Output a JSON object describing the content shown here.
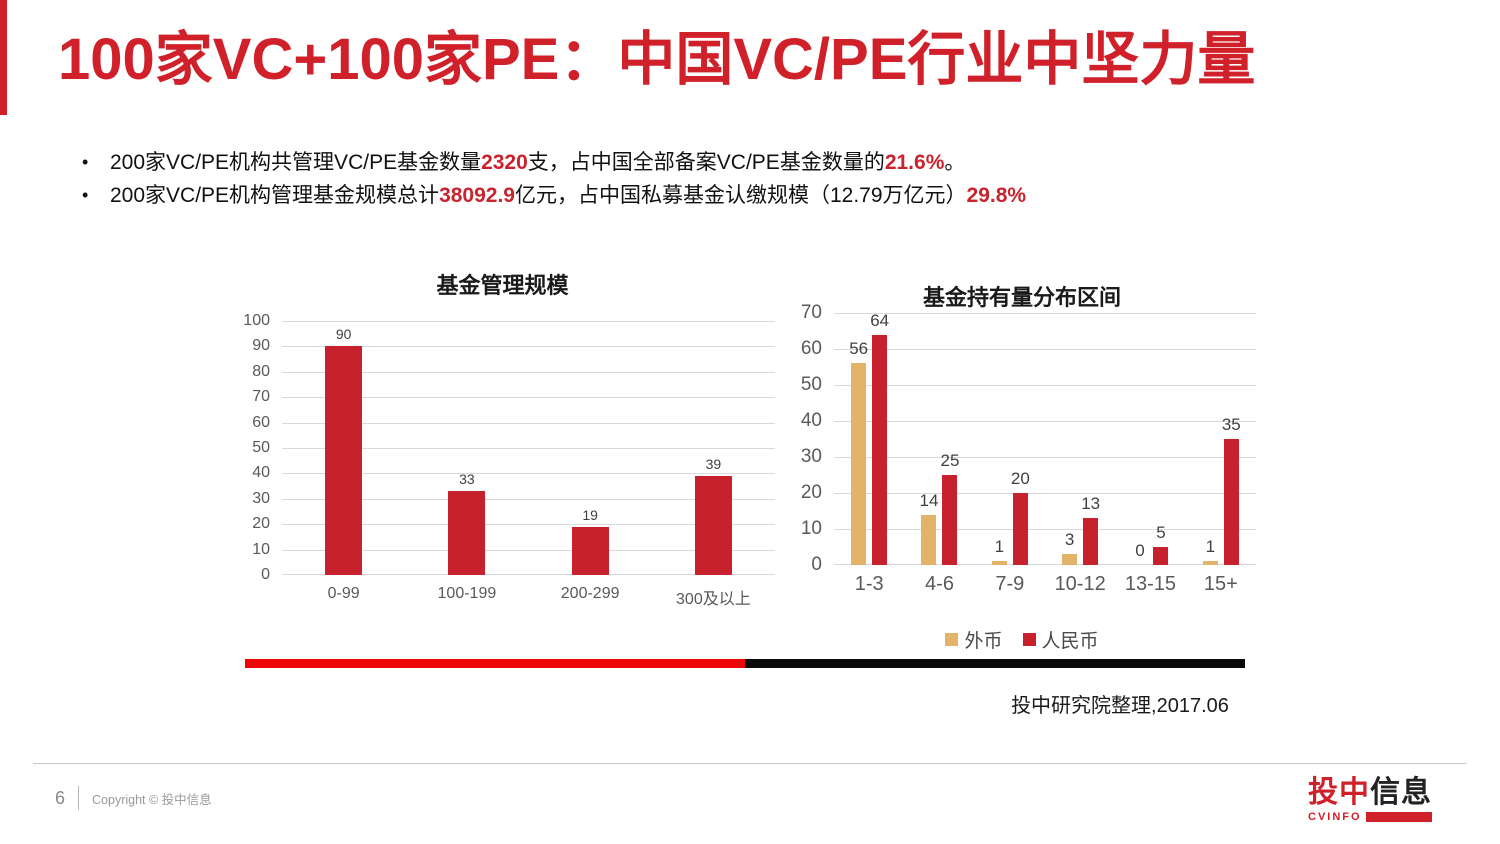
{
  "slide": {
    "title": "100家VC+100家PE：中国VC/PE行业中坚力量",
    "bullets": [
      {
        "segments": [
          {
            "text": "200家VC/PE机构共管理VC/PE基金数量"
          },
          {
            "text": "2320",
            "highlight": true
          },
          {
            "text": "支，占中国全部备案VC/PE基金数量的"
          },
          {
            "text": "21.6%",
            "highlight": true
          },
          {
            "text": "。"
          }
        ]
      },
      {
        "segments": [
          {
            "text": "200家VC/PE机构管理基金规模总计"
          },
          {
            "text": "38092.9",
            "highlight": true
          },
          {
            "text": "亿元，占中国私募基金认缴规模（12.79万亿元）"
          },
          {
            "text": "29.8%",
            "highlight": true
          }
        ]
      }
    ],
    "source_note": "投中研究院整理,2017.06",
    "footer": {
      "page_number": "6",
      "copyright": "Copyright © 投中信息",
      "logo": {
        "brand_red": "投中",
        "brand_black": "信息",
        "sub_brand": "CVINFO"
      }
    },
    "colors": {
      "accent_red": "#D0202A",
      "highlight_red": "#C9232D",
      "chart_red": "#C8212E",
      "gold": "#E2B368",
      "divider_red": "#EE0505",
      "divider_black": "#0a0a0a"
    }
  },
  "chart_data": [
    {
      "type": "bar",
      "title": "基金管理规模",
      "categories": [
        "0-99",
        "100-199",
        "200-299",
        "300及以上"
      ],
      "series": [
        {
          "color": "#C8212E",
          "values": [
            90,
            33,
            19,
            39
          ]
        }
      ],
      "ylim": [
        0,
        100
      ],
      "ytick_step": 10,
      "grid": true,
      "value_labels": [
        [
          "90",
          "33",
          "19",
          "39"
        ]
      ],
      "legend": false
    },
    {
      "type": "bar",
      "title": "基金持有量分布区间",
      "categories": [
        "1-3",
        "4-6",
        "7-9",
        "10-12",
        "13-15",
        "15+"
      ],
      "series": [
        {
          "name": "外币",
          "color": "#E2B368",
          "values": [
            56,
            14,
            1,
            3,
            0,
            1
          ]
        },
        {
          "name": "人民币",
          "color": "#C8212E",
          "values": [
            64,
            25,
            20,
            13,
            5,
            35
          ]
        }
      ],
      "ylim": [
        0,
        70
      ],
      "ytick_step": 10,
      "grid": true,
      "value_labels": [
        [
          "56",
          "14",
          "1",
          "3",
          "0",
          "1"
        ],
        [
          "64",
          "25",
          "20",
          "13",
          "5",
          "35"
        ]
      ],
      "legend": true,
      "legend_position": "bottom"
    }
  ]
}
